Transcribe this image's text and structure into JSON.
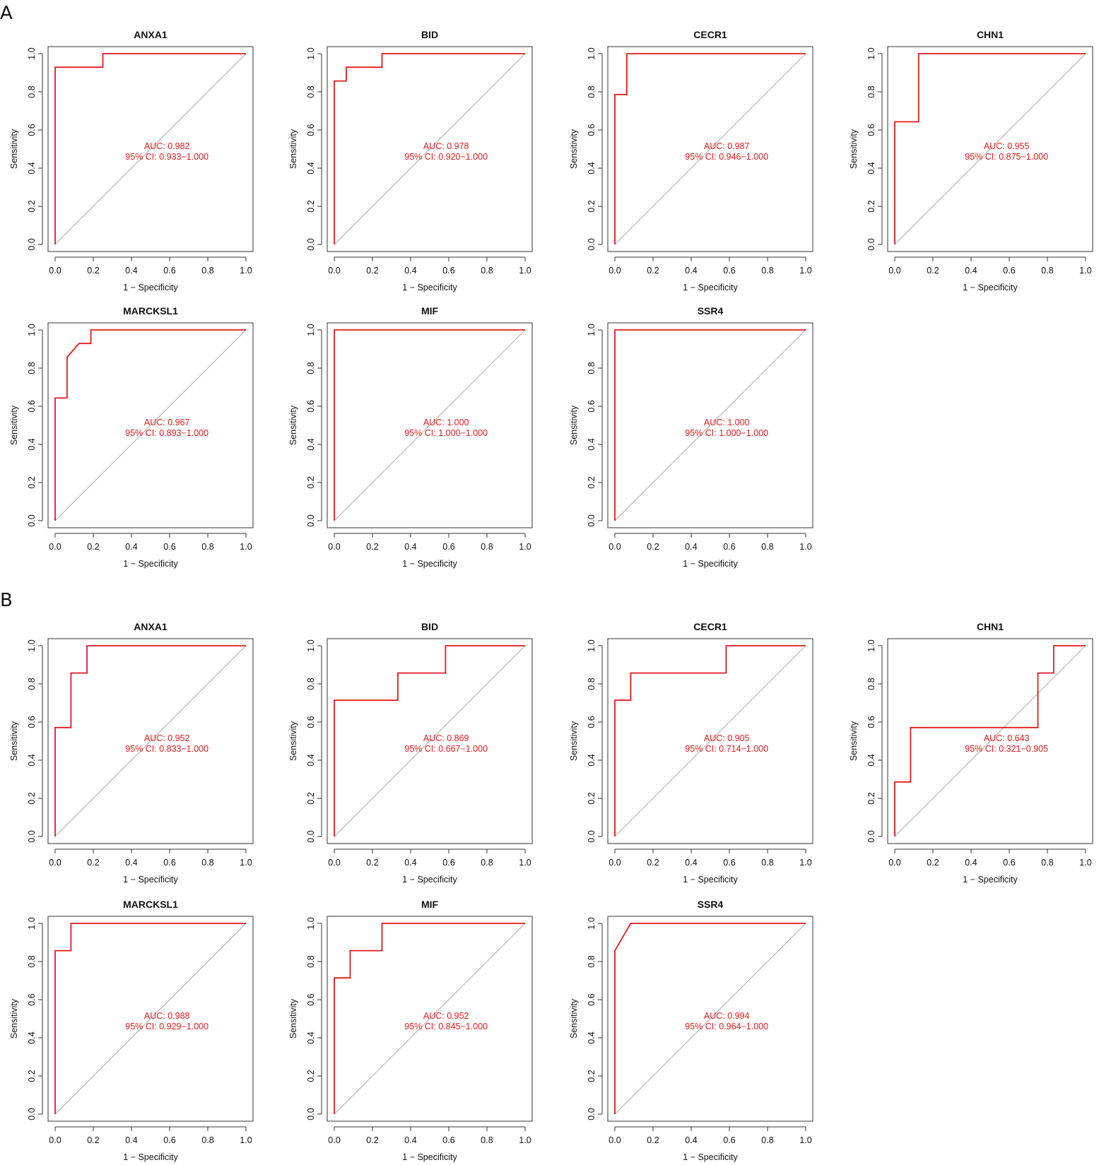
{
  "panels": [
    {
      "letter": "A",
      "charts": [
        {
          "type": "line",
          "title": "ANXA1",
          "xlabel": "1 − Specificity",
          "ylabel": "Sensitivity",
          "xlim": [
            0,
            1
          ],
          "ylim": [
            0,
            1
          ],
          "xticks": [
            "0.0",
            "0.2",
            "0.4",
            "0.6",
            "0.8",
            "1.0"
          ],
          "yticks": [
            "0.0",
            "0.2",
            "0.4",
            "0.6",
            "0.8",
            "1.0"
          ],
          "series": [
            {
              "x": [
                0,
                0,
                0.25,
                0.25,
                1
              ],
              "y": [
                0,
                0.929,
                0.929,
                1,
                1
              ]
            }
          ],
          "auc_text": "AUC: 0.982",
          "ci_text": "95% CI: 0.933−1.000",
          "line_color": "#e41a1c",
          "diag_color": "#aaaaaa"
        },
        {
          "type": "line",
          "title": "BID",
          "xlabel": "1 − Specificity",
          "ylabel": "Sensitivity",
          "xlim": [
            0,
            1
          ],
          "ylim": [
            0,
            1
          ],
          "xticks": [
            "0.0",
            "0.2",
            "0.4",
            "0.6",
            "0.8",
            "1.0"
          ],
          "yticks": [
            "0.0",
            "0.2",
            "0.4",
            "0.6",
            "0.8",
            "1.0"
          ],
          "series": [
            {
              "x": [
                0,
                0,
                0.0625,
                0.0625,
                0.25,
                0.25,
                1
              ],
              "y": [
                0,
                0.857,
                0.857,
                0.929,
                0.929,
                1,
                1
              ]
            }
          ],
          "auc_text": "AUC: 0.978",
          "ci_text": "95% CI: 0.920−1.000",
          "line_color": "#e41a1c",
          "diag_color": "#aaaaaa"
        },
        {
          "type": "line",
          "title": "CECR1",
          "xlabel": "1 − Specificity",
          "ylabel": "Sensitivity",
          "xlim": [
            0,
            1
          ],
          "ylim": [
            0,
            1
          ],
          "xticks": [
            "0.0",
            "0.2",
            "0.4",
            "0.6",
            "0.8",
            "1.0"
          ],
          "yticks": [
            "0.0",
            "0.2",
            "0.4",
            "0.6",
            "0.8",
            "1.0"
          ],
          "series": [
            {
              "x": [
                0,
                0,
                0.0625,
                0.0625,
                1
              ],
              "y": [
                0,
                0.786,
                0.786,
                1,
                1
              ]
            }
          ],
          "auc_text": "AUC: 0.987",
          "ci_text": "95% CI: 0.946−1.000",
          "line_color": "#e41a1c",
          "diag_color": "#aaaaaa"
        },
        {
          "type": "line",
          "title": "CHN1",
          "xlabel": "1 − Specificity",
          "ylabel": "Sensitivity",
          "xlim": [
            0,
            1
          ],
          "ylim": [
            0,
            1
          ],
          "xticks": [
            "0.0",
            "0.2",
            "0.4",
            "0.6",
            "0.8",
            "1.0"
          ],
          "yticks": [
            "0.0",
            "0.2",
            "0.4",
            "0.6",
            "0.8",
            "1.0"
          ],
          "series": [
            {
              "x": [
                0,
                0,
                0.125,
                0.125,
                1
              ],
              "y": [
                0,
                0.643,
                0.643,
                1,
                1
              ]
            }
          ],
          "auc_text": "AUC: 0.955",
          "ci_text": "95% CI: 0.875−1.000",
          "line_color": "#e41a1c",
          "diag_color": "#aaaaaa"
        },
        {
          "type": "line",
          "title": "MARCKSL1",
          "xlabel": "1 − Specificity",
          "ylabel": "Sensitivity",
          "xlim": [
            0,
            1
          ],
          "ylim": [
            0,
            1
          ],
          "xticks": [
            "0.0",
            "0.2",
            "0.4",
            "0.6",
            "0.8",
            "1.0"
          ],
          "yticks": [
            "0.0",
            "0.2",
            "0.4",
            "0.6",
            "0.8",
            "1.0"
          ],
          "series": [
            {
              "x": [
                0,
                0,
                0.0625,
                0.0625,
                0.125,
                0.1875,
                0.1875,
                1
              ],
              "y": [
                0,
                0.643,
                0.643,
                0.857,
                0.929,
                0.929,
                1,
                1
              ]
            }
          ],
          "auc_text": "AUC: 0.967",
          "ci_text": "95% CI: 0.893−1.000",
          "line_color": "#e41a1c",
          "diag_color": "#aaaaaa"
        },
        {
          "type": "line",
          "title": "MIF",
          "xlabel": "1 − Specificity",
          "ylabel": "Sensitivity",
          "xlim": [
            0,
            1
          ],
          "ylim": [
            0,
            1
          ],
          "xticks": [
            "0.0",
            "0.2",
            "0.4",
            "0.6",
            "0.8",
            "1.0"
          ],
          "yticks": [
            "0.0",
            "0.2",
            "0.4",
            "0.6",
            "0.8",
            "1.0"
          ],
          "series": [
            {
              "x": [
                0,
                0,
                1
              ],
              "y": [
                0,
                1,
                1
              ]
            }
          ],
          "auc_text": "AUC: 1.000",
          "ci_text": "95% CI: 1.000−1.000",
          "line_color": "#e41a1c",
          "diag_color": "#aaaaaa"
        },
        {
          "type": "line",
          "title": "SSR4",
          "xlabel": "1 − Specificity",
          "ylabel": "Sensitivity",
          "xlim": [
            0,
            1
          ],
          "ylim": [
            0,
            1
          ],
          "xticks": [
            "0.0",
            "0.2",
            "0.4",
            "0.6",
            "0.8",
            "1.0"
          ],
          "yticks": [
            "0.0",
            "0.2",
            "0.4",
            "0.6",
            "0.8",
            "1.0"
          ],
          "series": [
            {
              "x": [
                0,
                0,
                1
              ],
              "y": [
                0,
                1,
                1
              ]
            }
          ],
          "auc_text": "AUC: 1.000",
          "ci_text": "95% CI: 1.000−1.000",
          "line_color": "#e41a1c",
          "diag_color": "#aaaaaa"
        }
      ]
    },
    {
      "letter": "B",
      "charts": [
        {
          "type": "line",
          "title": "ANXA1",
          "xlabel": "1 − Specificity",
          "ylabel": "Sensitivity",
          "xlim": [
            0,
            1
          ],
          "ylim": [
            0,
            1
          ],
          "xticks": [
            "0.0",
            "0.2",
            "0.4",
            "0.6",
            "0.8",
            "1.0"
          ],
          "yticks": [
            "0.0",
            "0.2",
            "0.4",
            "0.6",
            "0.8",
            "1.0"
          ],
          "series": [
            {
              "x": [
                0,
                0,
                0.083,
                0.083,
                0.167,
                0.167,
                1
              ],
              "y": [
                0,
                0.571,
                0.571,
                0.857,
                0.857,
                1,
                1
              ]
            }
          ],
          "auc_text": "AUC: 0.952",
          "ci_text": "95% CI: 0.833−1.000",
          "line_color": "#e41a1c",
          "diag_color": "#aaaaaa"
        },
        {
          "type": "line",
          "title": "BID",
          "xlabel": "1 − Specificity",
          "ylabel": "Sensitivity",
          "xlim": [
            0,
            1
          ],
          "ylim": [
            0,
            1
          ],
          "xticks": [
            "0.0",
            "0.2",
            "0.4",
            "0.6",
            "0.8",
            "1.0"
          ],
          "yticks": [
            "0.0",
            "0.2",
            "0.4",
            "0.6",
            "0.8",
            "1.0"
          ],
          "series": [
            {
              "x": [
                0,
                0,
                0.333,
                0.333,
                0.583,
                0.583,
                1
              ],
              "y": [
                0,
                0.714,
                0.714,
                0.857,
                0.857,
                1,
                1
              ]
            }
          ],
          "auc_text": "AUC: 0.869",
          "ci_text": "95% CI: 0.667−1.000",
          "line_color": "#e41a1c",
          "diag_color": "#aaaaaa"
        },
        {
          "type": "line",
          "title": "CECR1",
          "xlabel": "1 − Specificity",
          "ylabel": "Sensitivity",
          "xlim": [
            0,
            1
          ],
          "ylim": [
            0,
            1
          ],
          "xticks": [
            "0.0",
            "0.2",
            "0.4",
            "0.6",
            "0.8",
            "1.0"
          ],
          "yticks": [
            "0.0",
            "0.2",
            "0.4",
            "0.6",
            "0.8",
            "1.0"
          ],
          "series": [
            {
              "x": [
                0,
                0,
                0.083,
                0.083,
                0.583,
                0.583,
                1
              ],
              "y": [
                0,
                0.714,
                0.714,
                0.857,
                0.857,
                1,
                1
              ]
            }
          ],
          "auc_text": "AUC: 0.905",
          "ci_text": "95% CI: 0.714−1.000",
          "line_color": "#e41a1c",
          "diag_color": "#aaaaaa"
        },
        {
          "type": "line",
          "title": "CHN1",
          "xlabel": "1 − Specificity",
          "ylabel": "Sensitivity",
          "xlim": [
            0,
            1
          ],
          "ylim": [
            0,
            1
          ],
          "xticks": [
            "0.0",
            "0.2",
            "0.4",
            "0.6",
            "0.8",
            "1.0"
          ],
          "yticks": [
            "0.0",
            "0.2",
            "0.4",
            "0.6",
            "0.8",
            "1.0"
          ],
          "series": [
            {
              "x": [
                0,
                0,
                0.083,
                0.083,
                0.75,
                0.75,
                0.833,
                0.833,
                1
              ],
              "y": [
                0,
                0.286,
                0.286,
                0.571,
                0.571,
                0.857,
                0.857,
                1,
                1
              ]
            }
          ],
          "auc_text": "AUC: 0.643",
          "ci_text": "95% CI: 0.321−0.905",
          "line_color": "#e41a1c",
          "diag_color": "#aaaaaa"
        },
        {
          "type": "line",
          "title": "MARCKSL1",
          "xlabel": "1 − Specificity",
          "ylabel": "Sensitivity",
          "xlim": [
            0,
            1
          ],
          "ylim": [
            0,
            1
          ],
          "xticks": [
            "0.0",
            "0.2",
            "0.4",
            "0.6",
            "0.8",
            "1.0"
          ],
          "yticks": [
            "0.0",
            "0.2",
            "0.4",
            "0.6",
            "0.8",
            "1.0"
          ],
          "series": [
            {
              "x": [
                0,
                0,
                0.083,
                0.083,
                1
              ],
              "y": [
                0,
                0.857,
                0.857,
                1,
                1
              ]
            }
          ],
          "auc_text": "AUC: 0.988",
          "ci_text": "95% CI: 0.929−1.000",
          "line_color": "#e41a1c",
          "diag_color": "#aaaaaa"
        },
        {
          "type": "line",
          "title": "MIF",
          "xlabel": "1 − Specificity",
          "ylabel": "Sensitivity",
          "xlim": [
            0,
            1
          ],
          "ylim": [
            0,
            1
          ],
          "xticks": [
            "0.0",
            "0.2",
            "0.4",
            "0.6",
            "0.8",
            "1.0"
          ],
          "yticks": [
            "0.0",
            "0.2",
            "0.4",
            "0.6",
            "0.8",
            "1.0"
          ],
          "series": [
            {
              "x": [
                0,
                0,
                0.083,
                0.083,
                0.25,
                0.25,
                1
              ],
              "y": [
                0,
                0.714,
                0.714,
                0.857,
                0.857,
                1,
                1
              ]
            }
          ],
          "auc_text": "AUC: 0.952",
          "ci_text": "95% CI: 0.845−1.000",
          "line_color": "#e41a1c",
          "diag_color": "#aaaaaa"
        },
        {
          "type": "line",
          "title": "SSR4",
          "xlabel": "1 − Specificity",
          "ylabel": "Sensitivity",
          "xlim": [
            0,
            1
          ],
          "ylim": [
            0,
            1
          ],
          "xticks": [
            "0.0",
            "0.2",
            "0.4",
            "0.6",
            "0.8",
            "1.0"
          ],
          "yticks": [
            "0.0",
            "0.2",
            "0.4",
            "0.6",
            "0.8",
            "1.0"
          ],
          "series": [
            {
              "x": [
                0,
                0,
                0.083,
                1
              ],
              "y": [
                0,
                0.857,
                1,
                1
              ]
            }
          ],
          "auc_text": "AUC: 0.994",
          "ci_text": "95% CI: 0.964−1.000",
          "line_color": "#e41a1c",
          "diag_color": "#aaaaaa"
        }
      ]
    }
  ]
}
